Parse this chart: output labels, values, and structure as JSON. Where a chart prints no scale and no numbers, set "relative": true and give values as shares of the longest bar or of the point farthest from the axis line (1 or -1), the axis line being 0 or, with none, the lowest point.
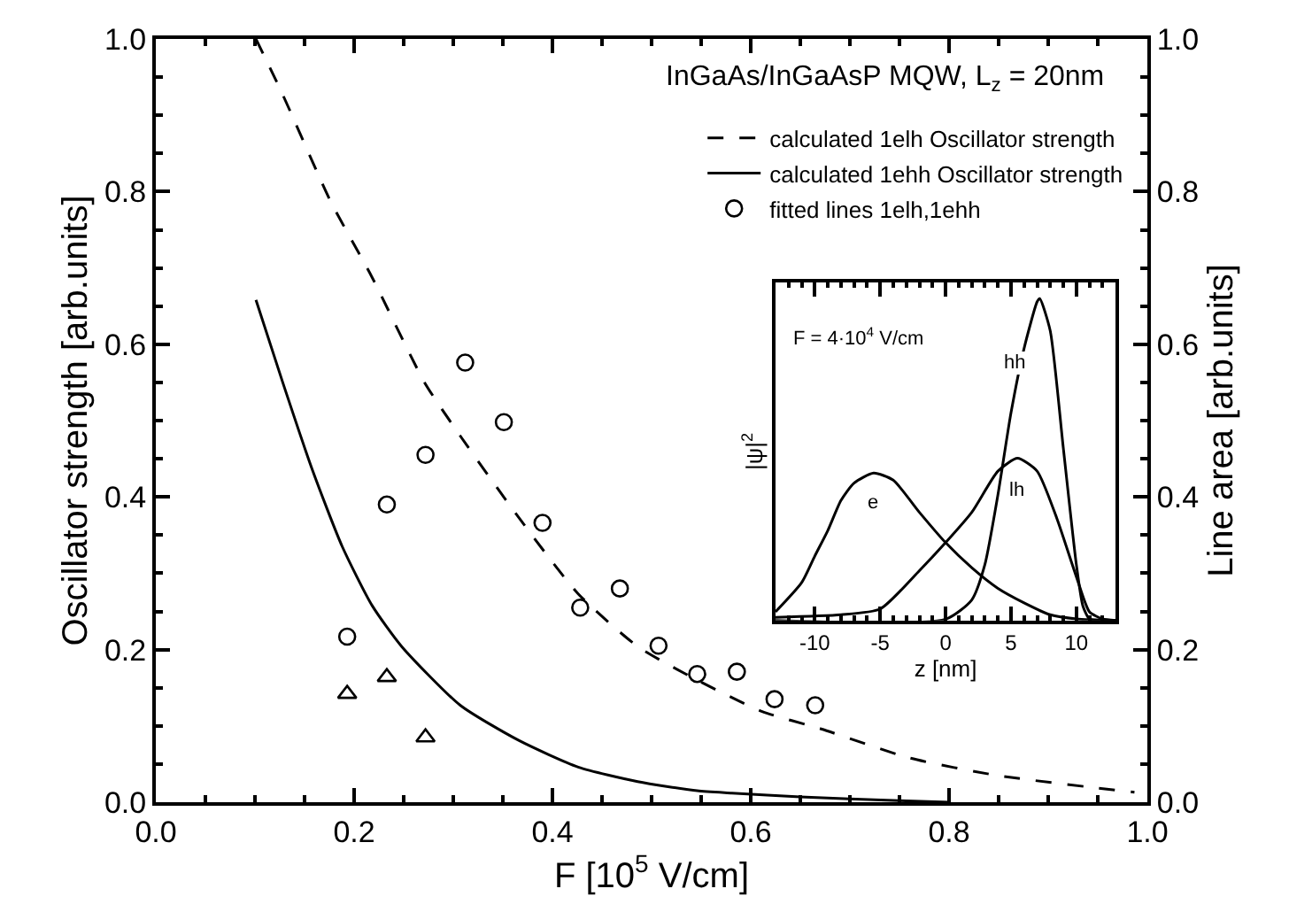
{
  "chart_data": [
    {
      "type": "line",
      "title": "InGaAs/InGaAsP MQW, L$_{z}$ = 20nm",
      "xlabel": "F [10$^{5}$ V/cm]",
      "ylabel": "Oscillator strength [arb.units]",
      "y2label": "Line area [arb.units]",
      "xlim": [
        0,
        1
      ],
      "xticks": [
        {
          "value": 0,
          "label": "0.0"
        },
        0.2,
        0.4,
        0.6,
        0.8,
        {
          "value": 1,
          "label": "1.0"
        }
      ],
      "ylim": [
        0,
        1
      ],
      "yticks": [
        {
          "value": 0,
          "label": "0.0"
        },
        0.2,
        0.4,
        0.6,
        0.8,
        {
          "value": 1,
          "label": "1.0"
        }
      ],
      "y2lim": [
        0,
        1
      ],
      "y2ticks": [
        {
          "value": 0,
          "label": "0.0"
        },
        0.2,
        0.4,
        0.6,
        0.8,
        {
          "value": 1,
          "label": "1.0"
        }
      ],
      "legend": "top right",
      "series": [
        {
          "name": "calculated 1elh Oscillator strength",
          "type": "line",
          "line_style": "dashed",
          "color": "#000000",
          "x": [
            0.101,
            0.128,
            0.176,
            0.218,
            0.271,
            0.307,
            0.366,
            0.426,
            0.486,
            0.546,
            0.611,
            0.671,
            0.76,
            0.849,
            0.987
          ],
          "values": [
            1.0,
            0.927,
            0.788,
            0.688,
            0.55,
            0.48,
            0.373,
            0.273,
            0.204,
            0.16,
            0.119,
            0.096,
            0.058,
            0.035,
            0.013
          ]
        },
        {
          "name": "calculated 1ehh Oscillator strength",
          "type": "line",
          "line_style": "solid",
          "color": "#000000",
          "x": [
            0.101,
            0.128,
            0.158,
            0.188,
            0.218,
            0.248,
            0.307,
            0.366,
            0.426,
            0.486,
            0.546,
            0.581,
            0.65,
            0.75,
            0.8
          ],
          "values": [
            0.658,
            0.55,
            0.435,
            0.335,
            0.258,
            0.204,
            0.127,
            0.081,
            0.046,
            0.027,
            0.015,
            0.012,
            0.007,
            0.002,
            0.0
          ]
        },
        {
          "name": "fitted lines 1elh,1ehh",
          "type": "scatter",
          "marker": "circle",
          "axis": "y2",
          "color": "#000000",
          "x": [
            0.193,
            0.233,
            0.272,
            0.312,
            0.351,
            0.39,
            0.428,
            0.468,
            0.507,
            0.546,
            0.586,
            0.624,
            0.665
          ],
          "values": [
            0.217,
            0.39,
            0.455,
            0.576,
            0.498,
            0.366,
            0.255,
            0.28,
            0.205,
            0.168,
            0.171,
            0.135,
            0.127
          ]
        },
        {
          "type": "scatter",
          "marker": "triangle",
          "axis": "y2",
          "color": "#000000",
          "x": [
            0.193,
            0.233,
            0.272
          ],
          "values": [
            0.142,
            0.164,
            0.085
          ]
        }
      ]
    },
    {
      "type": "line",
      "relative": true,
      "xlabel": "z [nm]",
      "ylabel": "|ψ|$^{2}$",
      "annotations": [
        "F = 4·10$^{4}$ V/cm"
      ],
      "xlim": [
        -13,
        13
      ],
      "xticks": [
        -10,
        -5,
        0,
        5,
        10
      ],
      "tick_labels": "x",
      "series": [
        {
          "name": "e",
          "color": "#000000",
          "x": [
            -13,
            -11,
            -10,
            -9,
            -8,
            -7,
            -5.5,
            -4,
            -2,
            0,
            2,
            4,
            6,
            8,
            10,
            13
          ],
          "values": [
            0.027,
            0.118,
            0.2,
            0.28,
            0.373,
            0.427,
            0.458,
            0.436,
            0.336,
            0.242,
            0.164,
            0.1,
            0.055,
            0.018,
            0.005,
            0
          ]
        },
        {
          "name": "lh",
          "color": "#000000",
          "x": [
            -13,
            -8,
            -5,
            -2,
            0,
            2,
            4,
            5.5,
            7,
            8.5,
            10,
            11,
            12,
            13
          ],
          "values": [
            0.01,
            0.018,
            0.036,
            0.155,
            0.242,
            0.336,
            0.464,
            0.504,
            0.464,
            0.318,
            0.136,
            0.027,
            0.005,
            0
          ]
        },
        {
          "name": "hh",
          "color": "#000000",
          "x": [
            -13,
            0,
            2,
            3,
            4,
            5,
            6,
            7,
            7.2,
            8,
            9,
            10,
            10.5,
            11,
            12,
            13
          ],
          "values": [
            0,
            0.004,
            0.064,
            0.173,
            0.39,
            0.645,
            0.845,
            0.99,
            1.0,
            0.9,
            0.536,
            0.173,
            0.045,
            0.005,
            0,
            0
          ]
        }
      ]
    }
  ]
}
